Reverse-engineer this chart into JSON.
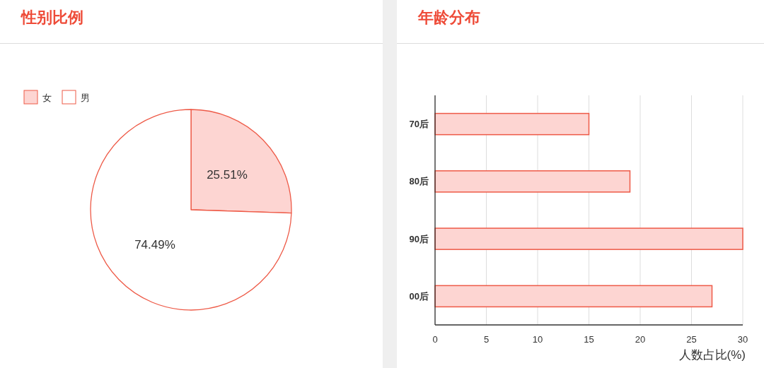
{
  "chart_data": [
    {
      "type": "pie",
      "title": "性别比例",
      "categories": [
        "女",
        "男"
      ],
      "values": [
        25.51,
        74.49
      ],
      "colors": [
        "#fdd5d2",
        "#ffffff"
      ],
      "value_labels": [
        "25.51%",
        "74.49%"
      ],
      "legend": "top left"
    },
    {
      "type": "bar",
      "title": "年龄分布",
      "orientation": "horizontal",
      "categories": [
        "70后",
        "80后",
        "90后",
        "00后"
      ],
      "values": [
        15,
        19,
        30,
        27
      ],
      "color": "#fdd5d2",
      "xlim": [
        0,
        30
      ],
      "xticks": [
        0,
        5,
        10,
        15,
        20,
        25,
        30
      ],
      "xlabel": "人数占比(%)",
      "grid": "x"
    }
  ]
}
